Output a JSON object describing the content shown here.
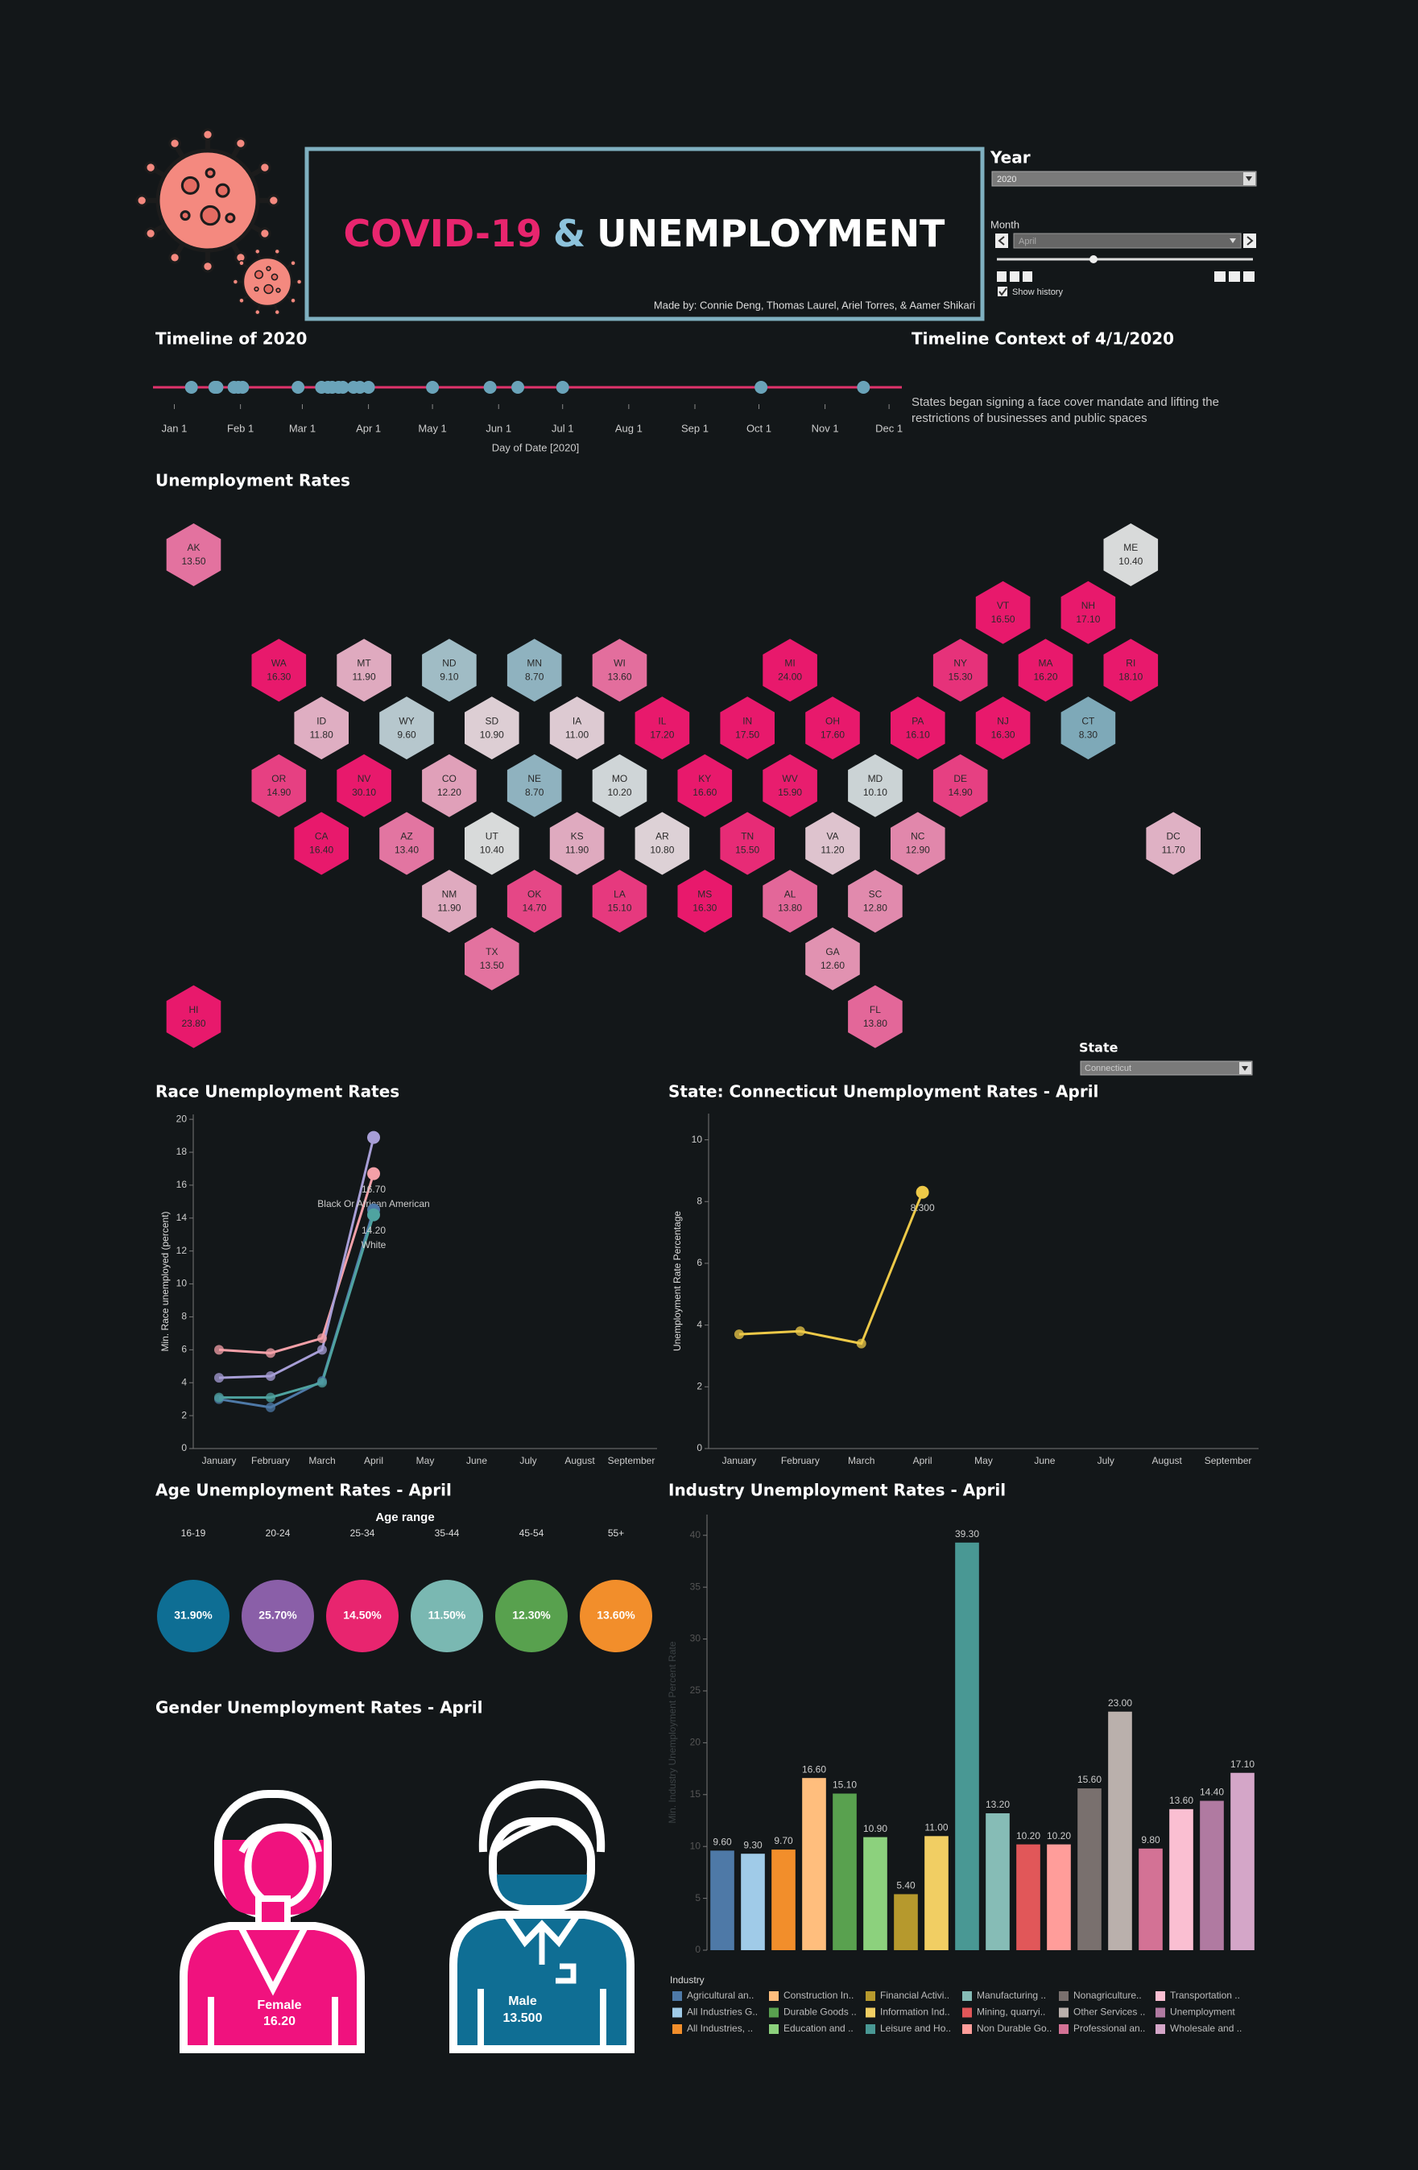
{
  "header": {
    "title_covid": "COVID-19",
    "title_amp": "&",
    "title_unemployment": "UNEMPLOYMENT",
    "credits": "Made by: Connie Deng, Thomas Laurel, Ariel Torres, & Aamer Shikari"
  },
  "filters": {
    "year_label": "Year",
    "year": "2020",
    "month_label": "Month",
    "month": "April",
    "show_history": "Show history",
    "state_label": "State",
    "state": "Connecticut"
  },
  "context": {
    "title": "Timeline Context of 4/1/2020",
    "lines": [
      "States began signing a face cover mandate and lifting the",
      "restrictions of businesses and public spaces"
    ]
  },
  "chart_data": [
    {
      "type": "timeline",
      "title": "Timeline of 2020",
      "xlabel": "Day of Date [2020]",
      "x": [
        9,
        20,
        21,
        29,
        31,
        33,
        59,
        70,
        73,
        75,
        78,
        80,
        85,
        88,
        92,
        122,
        149,
        162,
        183,
        276,
        324
      ],
      "xlim": [
        -9,
        342
      ],
      "xticks": [
        {
          "value": 1,
          "label": "Jan 1"
        },
        {
          "value": 32,
          "label": "Feb 1"
        },
        {
          "value": 61,
          "label": "Mar 1"
        },
        {
          "value": 92,
          "label": "Apr 1"
        },
        {
          "value": 122,
          "label": "May 1"
        },
        {
          "value": 153,
          "label": "Jun 1"
        },
        {
          "value": 183,
          "label": "Jul 1"
        },
        {
          "value": 214,
          "label": "Aug 1"
        },
        {
          "value": 245,
          "label": "Sep 1"
        },
        {
          "value": 275,
          "label": "Oct 1"
        },
        {
          "value": 306,
          "label": "Nov 1"
        },
        {
          "value": 336,
          "label": "Dec 1"
        }
      ],
      "color": "#6aa3b9",
      "line_color": "#e0336c"
    },
    {
      "type": "hexmap",
      "title": "Unemployment Rates",
      "categories": [
        "AK",
        "ME",
        "VT",
        "NH",
        "WA",
        "MT",
        "ND",
        "MN",
        "WI",
        "MI",
        "NY",
        "MA",
        "RI",
        "ID",
        "WY",
        "SD",
        "IA",
        "IL",
        "IN",
        "OH",
        "PA",
        "NJ",
        "CT",
        "OR",
        "NV",
        "CO",
        "NE",
        "MO",
        "KY",
        "WV",
        "MD",
        "DE",
        "CA",
        "AZ",
        "UT",
        "KS",
        "AR",
        "TN",
        "VA",
        "NC",
        "DC",
        "NM",
        "OK",
        "LA",
        "MS",
        "AL",
        "SC",
        "TX",
        "GA",
        "HI",
        "FL"
      ],
      "values": [
        13.5,
        10.4,
        16.5,
        17.1,
        16.3,
        11.9,
        9.1,
        8.7,
        13.6,
        24.0,
        15.3,
        16.2,
        18.1,
        11.8,
        9.6,
        10.9,
        11.0,
        17.2,
        17.5,
        17.6,
        16.1,
        16.3,
        8.3,
        14.9,
        30.1,
        12.2,
        8.7,
        10.2,
        16.6,
        15.9,
        10.1,
        14.9,
        16.4,
        13.4,
        10.4,
        11.9,
        10.8,
        15.5,
        11.2,
        12.9,
        11.7,
        11.9,
        14.7,
        15.1,
        16.3,
        13.8,
        12.8,
        13.5,
        12.6,
        23.8,
        13.8
      ],
      "value_labels": [
        "13.50",
        "10.40",
        "16.50",
        "17.10",
        "16.30",
        "11.90",
        "9.10",
        "8.70",
        "13.60",
        "24.00",
        "15.30",
        "16.20",
        "18.10",
        "11.80",
        "9.60",
        "10.90",
        "11.00",
        "17.20",
        "17.50",
        "17.60",
        "16.10",
        "16.30",
        "8.30",
        "14.90",
        "30.10",
        "12.20",
        "8.70",
        "10.20",
        "16.60",
        "15.90",
        "10.10",
        "14.90",
        "16.40",
        "13.40",
        "10.40",
        "11.90",
        "10.80",
        "15.50",
        "11.20",
        "12.90",
        "11.70",
        "11.90",
        "14.70",
        "15.10",
        "16.30",
        "13.80",
        "12.80",
        "13.50",
        "12.60",
        "23.80",
        "13.80"
      ],
      "colors": {
        "low": "#7ea9b8",
        "mid": "#dcdcdc",
        "high": "#e8196c"
      }
    },
    {
      "type": "line",
      "title": "Race Unemployment Rates",
      "ylabel": "Min. Race unemployed (percent)",
      "categories": [
        "January",
        "February",
        "March",
        "April",
        "May",
        "June",
        "July",
        "August",
        "September"
      ],
      "ylim": [
        0,
        20.3
      ],
      "yticks": [
        0,
        2,
        4,
        6,
        8,
        10,
        12,
        14,
        16,
        18,
        20
      ],
      "series": [
        {
          "name": "Black Or African American",
          "color": "#f4a0a8",
          "values": [
            6.0,
            5.8,
            6.7,
            16.7,
            null,
            null,
            null,
            null,
            null
          ],
          "value_labels": [
            null,
            null,
            null,
            "16.70",
            null,
            null,
            null,
            null,
            null
          ]
        },
        {
          "color": "#a79ed6",
          "values": [
            4.3,
            4.4,
            6.0,
            18.9,
            null,
            null,
            null,
            null,
            null
          ]
        },
        {
          "color": "#4e79a7",
          "values": [
            3.0,
            2.5,
            4.1,
            14.5,
            null,
            null,
            null,
            null,
            null
          ]
        },
        {
          "name": "White",
          "color": "#4fa3a0",
          "values": [
            3.1,
            3.1,
            4.0,
            14.2,
            null,
            null,
            null,
            null,
            null
          ],
          "value_labels": [
            null,
            null,
            null,
            "14.20",
            null,
            null,
            null,
            null,
            null
          ]
        }
      ]
    },
    {
      "type": "line",
      "title": "State: Connecticut Unemployment Rates - April",
      "ylabel": "Unemployment Rate Percentage",
      "categories": [
        "January",
        "February",
        "March",
        "April",
        "May",
        "June",
        "July",
        "August",
        "September"
      ],
      "ylim": [
        0,
        10.85
      ],
      "yticks": [
        0,
        2,
        4,
        6,
        8,
        10
      ],
      "series": [
        {
          "color": "#edc948",
          "values": [
            3.7,
            3.8,
            3.4,
            8.3,
            null,
            null,
            null,
            null,
            null
          ],
          "value_labels": [
            null,
            null,
            null,
            "8.300",
            null,
            null,
            null,
            null,
            null
          ]
        }
      ]
    },
    {
      "type": "circles",
      "title": "Age Unemployment Rates - April",
      "legend_title": "Age range",
      "categories": [
        "16-19",
        "20-24",
        "25-34",
        "35-44",
        "45-54",
        "55+"
      ],
      "values": [
        31.9,
        25.7,
        14.5,
        11.5,
        12.3,
        13.6
      ],
      "value_labels": [
        "31.90%",
        "25.70%",
        "14.50%",
        "11.50%",
        "12.30%",
        "13.60%"
      ],
      "colors": [
        "#0e6e94",
        "#8a5fa8",
        "#e8256f",
        "#7ab8b2",
        "#58a14e",
        "#f28e2b"
      ]
    },
    {
      "type": "pictogram",
      "title": "Gender Unemployment Rates - April",
      "categories": [
        "Female",
        "Male"
      ],
      "values": [
        16.2,
        13.5
      ],
      "value_labels": [
        "16.20",
        "13.500"
      ],
      "colors": [
        "#f0127e",
        "#0f6e94"
      ]
    },
    {
      "type": "bar",
      "title": "Industry Unemployment Rates - April",
      "ylabel": "Min. Industry Unemployment Percent Rate",
      "legend_title": "Industry",
      "categories": [
        "Agricultural an..",
        "All Industries G..",
        "All Industries, ..",
        "Construction In..",
        "Durable Goods ..",
        "Education and ..",
        "Financial Activi..",
        "Information Ind..",
        "Leisure and Ho..",
        "Manufacturing ..",
        "Mining, quarryi..",
        "Non Durable Go..",
        "Nonagriculture..",
        "Other Services ..",
        "Professional an..",
        "Transportation ..",
        "Unemployment",
        "Wholesale and .."
      ],
      "values": [
        9.6,
        9.3,
        9.7,
        16.6,
        15.1,
        10.9,
        5.4,
        11.0,
        39.3,
        13.2,
        10.2,
        10.2,
        15.6,
        23.0,
        9.8,
        13.6,
        14.4,
        17.1
      ],
      "value_labels": [
        "9.60",
        "9.30",
        "9.70",
        "16.60",
        "15.10",
        "10.90",
        "5.40",
        "11.00",
        "39.30",
        "13.20",
        "10.20",
        "10.20",
        "15.60",
        "23.00",
        "9.80",
        "13.60",
        "14.40",
        "17.10"
      ],
      "colors": [
        "#4e79a7",
        "#a0cbe8",
        "#f28e2b",
        "#ffbe7d",
        "#59a14f",
        "#8cd17d",
        "#b6992d",
        "#f1ce63",
        "#499894",
        "#86bcb6",
        "#e15759",
        "#ff9d9a",
        "#79706e",
        "#bab0ac",
        "#d37295",
        "#fabfd2",
        "#b07aa1",
        "#d4a6c8"
      ],
      "ylim": [
        0,
        42
      ],
      "yticks": [
        0,
        5,
        10,
        15,
        20,
        25,
        30,
        35,
        40
      ]
    }
  ]
}
